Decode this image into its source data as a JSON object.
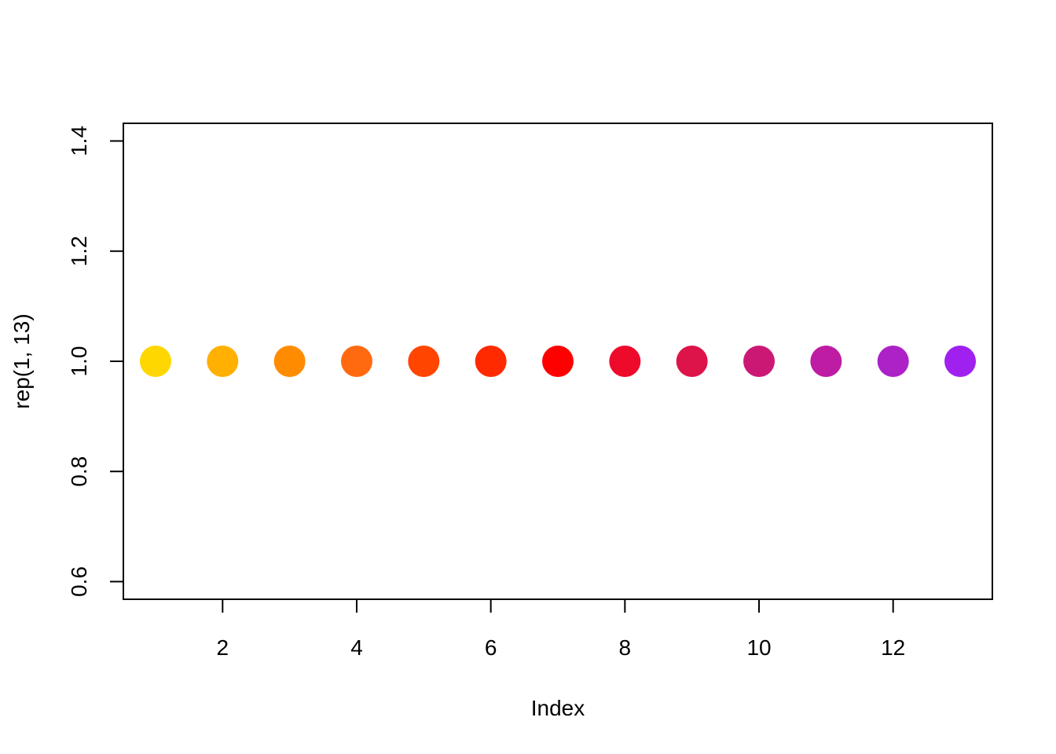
{
  "chart_data": {
    "type": "scatter",
    "title": "",
    "xlabel": "Index",
    "ylabel": "rep(1, 13)",
    "xlim": [
      0.52,
      13.48
    ],
    "ylim": [
      0.568,
      1.432
    ],
    "x_ticks": [
      2,
      4,
      6,
      8,
      10,
      12
    ],
    "x_tick_labels": [
      "2",
      "4",
      "6",
      "8",
      "10",
      "12"
    ],
    "y_ticks": [
      0.6,
      0.8,
      1.0,
      1.2,
      1.4
    ],
    "y_tick_labels": [
      "0.6",
      "0.8",
      "1.0",
      "1.2",
      "1.4"
    ],
    "grid": false,
    "legend": "none",
    "points": [
      {
        "x": 1,
        "y": 1.0,
        "color": "#FFD700"
      },
      {
        "x": 2,
        "y": 1.0,
        "color": "#FFB000"
      },
      {
        "x": 3,
        "y": 1.0,
        "color": "#FF8C00"
      },
      {
        "x": 4,
        "y": 1.0,
        "color": "#FF6A10"
      },
      {
        "x": 5,
        "y": 1.0,
        "color": "#FF4500"
      },
      {
        "x": 6,
        "y": 1.0,
        "color": "#FF2A00"
      },
      {
        "x": 7,
        "y": 1.0,
        "color": "#FF0000"
      },
      {
        "x": 8,
        "y": 1.0,
        "color": "#EE0A2A"
      },
      {
        "x": 9,
        "y": 1.0,
        "color": "#DC1449"
      },
      {
        "x": 10,
        "y": 1.0,
        "color": "#CC1875"
      },
      {
        "x": 11,
        "y": 1.0,
        "color": "#BE1CA3"
      },
      {
        "x": 12,
        "y": 1.0,
        "color": "#AC22C6"
      },
      {
        "x": 13,
        "y": 1.0,
        "color": "#A020F0"
      }
    ]
  }
}
